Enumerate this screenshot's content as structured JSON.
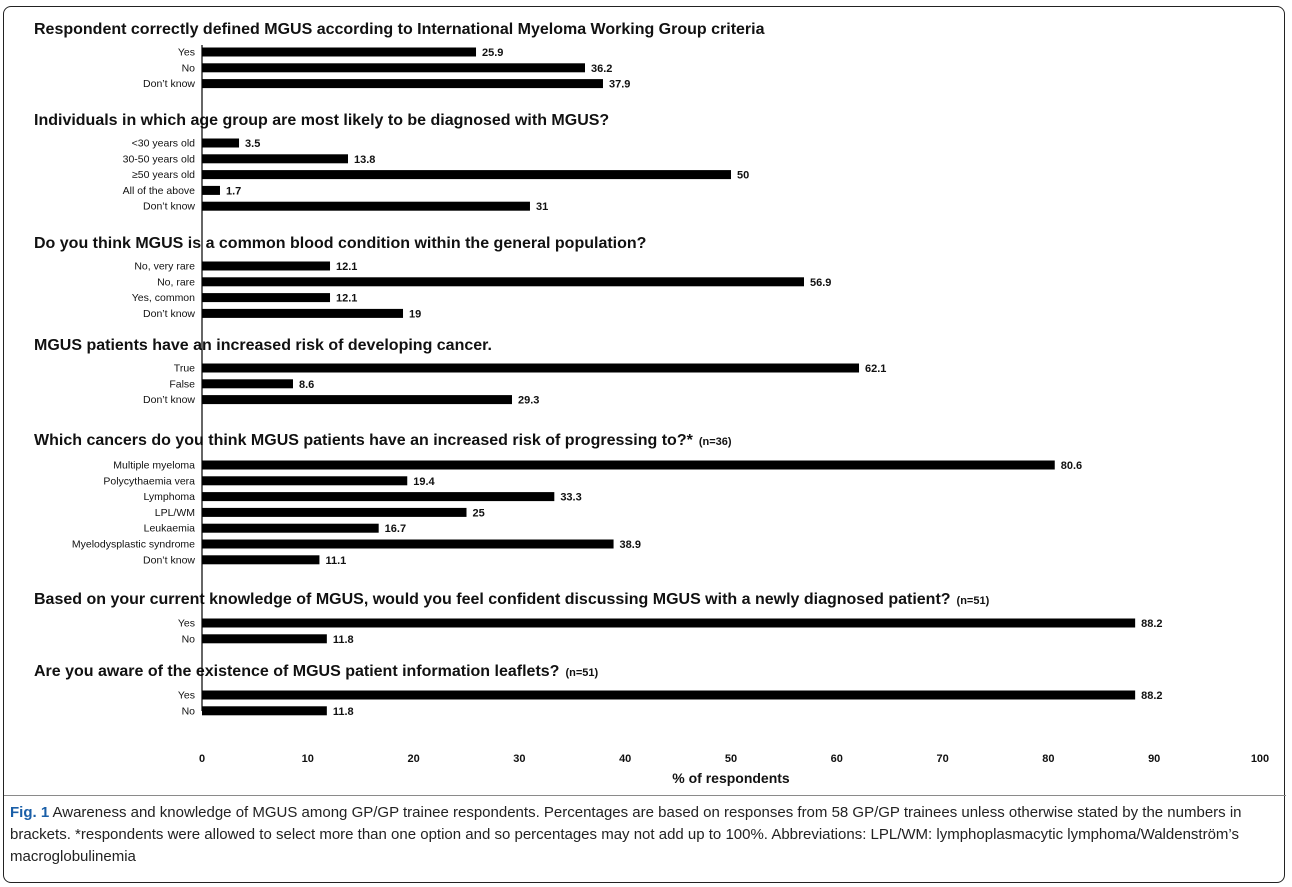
{
  "chart_data": {
    "type": "bar",
    "orientation": "horizontal",
    "xlabel": "% of respondents",
    "xlim": [
      0,
      100
    ],
    "xticks": [
      0,
      10,
      20,
      30,
      40,
      50,
      60,
      70,
      80,
      90,
      100
    ],
    "grid": false,
    "panels": [
      {
        "title": "Respondent correctly defined MGUS according to International Myeloma Working Group criteria",
        "note": "",
        "categories": [
          "Yes",
          "No",
          "Don’t know"
        ],
        "values": [
          25.9,
          36.2,
          37.9
        ]
      },
      {
        "title": "Individuals in which age group are most likely to be diagnosed with MGUS?",
        "note": "",
        "categories": [
          "<30 years old",
          "30-50 years old",
          "≥50 years old",
          "All of the above",
          "Don’t know"
        ],
        "values": [
          3.5,
          13.8,
          50,
          1.7,
          31
        ]
      },
      {
        "title": "Do you think MGUS is a common blood condition within the general population?",
        "note": "",
        "categories": [
          "No, very rare",
          "No, rare",
          "Yes, common",
          "Don’t know"
        ],
        "values": [
          12.1,
          56.9,
          12.1,
          19
        ]
      },
      {
        "title": "MGUS patients have an increased risk of developing cancer.",
        "note": "",
        "categories": [
          "True",
          "False",
          "Don’t know"
        ],
        "values": [
          62.1,
          8.6,
          29.3
        ]
      },
      {
        "title": "Which cancers do you think MGUS patients have an increased risk of progressing to?*",
        "note": "(n=36)",
        "categories": [
          "Multiple myeloma",
          "Polycythaemia vera",
          "Lymphoma",
          "LPL/WM",
          "Leukaemia",
          "Myelodysplastic syndrome",
          "Don’t know"
        ],
        "values": [
          80.6,
          19.4,
          33.3,
          25,
          16.7,
          38.9,
          11.1
        ]
      },
      {
        "title": "Based on your current knowledge of MGUS, would you feel confident discussing MGUS with a newly diagnosed patient?",
        "note": "(n=51)",
        "categories": [
          "Yes",
          "No"
        ],
        "values": [
          88.2,
          11.8
        ]
      },
      {
        "title": "Are you aware of the existence of MGUS patient information leaflets?",
        "note": "(n=51)",
        "categories": [
          "Yes",
          "No"
        ],
        "values": [
          88.2,
          11.8
        ]
      }
    ]
  },
  "caption": {
    "label": "Fig. 1",
    "text": " Awareness and knowledge of MGUS among GP/GP trainee respondents. Percentages are based on responses from 58 GP/GP trainees unless otherwise stated by the numbers in brackets. *respondents were allowed to select more than one option and so percentages may not add up to 100%. Abbreviations: LPL/WM: lymphoplasmacytic lymphoma/Waldenström’s macroglobulinemia"
  },
  "colors": {
    "bar": "#000000",
    "caption_label": "#1a5fa8"
  }
}
